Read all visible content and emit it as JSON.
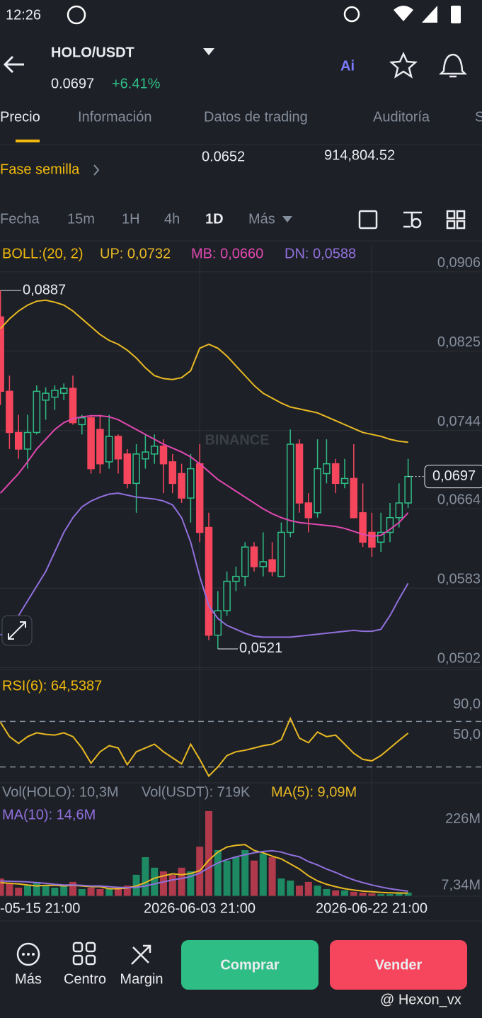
{
  "status_bar": {
    "time": "12:26"
  },
  "header": {
    "pair": "HOLO/USDT",
    "price": "0.0697",
    "change": "+6.41%",
    "ai": "Ai"
  },
  "tabs": [
    "Precio",
    "Información",
    "Datos de trading",
    "Auditoría",
    "S"
  ],
  "stats": {
    "phase": "Fase semilla",
    "low": "0.0652",
    "volume": "914,804.52"
  },
  "timeframes": [
    "Fecha",
    "15m",
    "1H",
    "4h",
    "1D",
    "Más"
  ],
  "main_chart": {
    "type": "candlestick",
    "watermark": "BINANCE",
    "legend": [
      "BOLL:(20, 2)",
      "UP: 0,0732",
      "MB: 0,0660",
      "DN: 0,0588"
    ],
    "ylim": [
      0.05,
      0.0934
    ],
    "yticks": [
      {
        "value": 0.0906,
        "label": "0,0906"
      },
      {
        "value": 0.0825,
        "label": "0,0825"
      },
      {
        "value": 0.0744,
        "label": "0,0744"
      },
      {
        "value": 0.0664,
        "label": "0,0664"
      },
      {
        "value": 0.0583,
        "label": "0,0583"
      },
      {
        "value": 0.0502,
        "label": "0,0502"
      }
    ],
    "up_color": "#2ebd85",
    "down_color": "#f6465d",
    "open": [
      0.086,
      0.0784,
      0.0742,
      0.0725,
      0.0742,
      0.0775,
      0.0778,
      0.0782,
      0.0787,
      0.075,
      0.0757,
      0.0745,
      0.0712,
      0.0738,
      0.072,
      0.069,
      0.0715,
      0.072,
      0.0728,
      0.0712,
      0.07,
      0.0675,
      0.071,
      0.0645,
      0.0535,
      0.056,
      0.059,
      0.0595,
      0.0625,
      0.0605,
      0.0612,
      0.0595,
      0.064,
      0.073,
      0.067,
      0.066,
      0.07,
      0.071,
      0.069,
      0.0695,
      0.066,
      0.064,
      0.063,
      0.064,
      0.0655,
      0.067
    ],
    "close": [
      0.0784,
      0.0742,
      0.0725,
      0.0742,
      0.0784,
      0.0782,
      0.0785,
      0.0787,
      0.0752,
      0.0757,
      0.0705,
      0.071,
      0.0738,
      0.0715,
      0.069,
      0.072,
      0.0722,
      0.0728,
      0.071,
      0.069,
      0.0675,
      0.0705,
      0.064,
      0.0535,
      0.056,
      0.059,
      0.0595,
      0.0625,
      0.0605,
      0.061,
      0.06,
      0.064,
      0.073,
      0.067,
      0.0655,
      0.0705,
      0.071,
      0.069,
      0.0695,
      0.0655,
      0.063,
      0.0625,
      0.064,
      0.0655,
      0.067,
      0.0697
    ],
    "high": [
      0.0887,
      0.08,
      0.076,
      0.076,
      0.079,
      0.0788,
      0.079,
      0.0792,
      0.08,
      0.076,
      0.076,
      0.076,
      0.076,
      0.074,
      0.0725,
      0.073,
      0.074,
      0.074,
      0.0735,
      0.072,
      0.071,
      0.072,
      0.073,
      0.066,
      0.058,
      0.06,
      0.0605,
      0.063,
      0.063,
      0.064,
      0.063,
      0.065,
      0.0745,
      0.0735,
      0.068,
      0.0735,
      0.0735,
      0.0715,
      0.0715,
      0.073,
      0.069,
      0.066,
      0.066,
      0.067,
      0.069,
      0.0715
    ],
    "low": [
      0.077,
      0.0725,
      0.0715,
      0.0705,
      0.074,
      0.0755,
      0.0765,
      0.0775,
      0.075,
      0.074,
      0.07,
      0.07,
      0.0705,
      0.07,
      0.0685,
      0.066,
      0.0705,
      0.071,
      0.068,
      0.068,
      0.067,
      0.065,
      0.063,
      0.053,
      0.0521,
      0.0555,
      0.058,
      0.0585,
      0.06,
      0.0595,
      0.0595,
      0.0595,
      0.0635,
      0.066,
      0.064,
      0.0655,
      0.069,
      0.068,
      0.0685,
      0.0655,
      0.0625,
      0.0615,
      0.062,
      0.063,
      0.0645,
      0.0665
    ],
    "series": [
      {
        "color": "#e8b923",
        "values": [
          0.0848,
          0.0858,
          0.0866,
          0.0872,
          0.0876,
          0.0877,
          0.0875,
          0.0872,
          0.0866,
          0.0858,
          0.085,
          0.0842,
          0.0836,
          0.0832,
          0.0826,
          0.0818,
          0.0808,
          0.08,
          0.0797,
          0.0796,
          0.0798,
          0.0805,
          0.0828,
          0.0832,
          0.0828,
          0.082,
          0.081,
          0.08,
          0.079,
          0.0782,
          0.0777,
          0.0772,
          0.0768,
          0.0766,
          0.0764,
          0.0762,
          0.0758,
          0.0754,
          0.075,
          0.0746,
          0.0742,
          0.074,
          0.0738,
          0.0735,
          0.0733,
          0.0732
        ]
      },
      {
        "color": "#e048b0",
        "values": [
          0.068,
          0.069,
          0.07,
          0.0712,
          0.0725,
          0.0735,
          0.0745,
          0.0752,
          0.0756,
          0.0758,
          0.0759,
          0.0759,
          0.0758,
          0.0755,
          0.075,
          0.0745,
          0.074,
          0.0735,
          0.073,
          0.0726,
          0.0722,
          0.0717,
          0.071,
          0.0702,
          0.0694,
          0.0688,
          0.0682,
          0.0676,
          0.067,
          0.0664,
          0.0659,
          0.0655,
          0.0652,
          0.065,
          0.0649,
          0.0648,
          0.0647,
          0.0646,
          0.0644,
          0.0641,
          0.0638,
          0.0636,
          0.0637,
          0.0643,
          0.065,
          0.066
        ]
      },
      {
        "color": "#9070dd",
        "values": [
          0.0535,
          0.0542,
          0.0555,
          0.057,
          0.0585,
          0.06,
          0.062,
          0.064,
          0.0655,
          0.0666,
          0.0672,
          0.0676,
          0.0679,
          0.068,
          0.0678,
          0.0676,
          0.0675,
          0.0674,
          0.0672,
          0.0668,
          0.0655,
          0.063,
          0.0595,
          0.0565,
          0.0552,
          0.0545,
          0.0541,
          0.0537,
          0.0534,
          0.0533,
          0.0533,
          0.0533,
          0.0533,
          0.0534,
          0.0535,
          0.0536,
          0.0537,
          0.0538,
          0.0539,
          0.054,
          0.0539,
          0.0539,
          0.0541,
          0.0555,
          0.0572,
          0.0588
        ]
      }
    ],
    "high_label": {
      "value": 0.0887,
      "label": "0,0887"
    },
    "low_label": {
      "value": 0.0521,
      "label": "0,0521"
    },
    "last_price": {
      "value": 0.0697,
      "label": "0,0697"
    }
  },
  "rsi_chart": {
    "type": "line",
    "legend": "RSI(6): 64,5387",
    "ylim": [
      0,
      100
    ],
    "yticks": [
      {
        "value": 90,
        "label": "90,0"
      },
      {
        "value": 50,
        "label": "50,0"
      }
    ],
    "levels": [
      80,
      20
    ],
    "color": "#e8b923",
    "values": [
      79,
      60,
      51,
      60,
      65,
      63,
      62,
      65,
      60,
      45,
      25,
      40,
      48,
      45,
      23,
      40,
      45,
      50,
      40,
      32,
      24,
      50,
      30,
      8,
      20,
      35,
      40,
      42,
      45,
      48,
      50,
      56,
      84,
      58,
      52,
      66,
      60,
      62,
      50,
      38,
      30,
      28,
      35,
      45,
      55,
      64.5387
    ]
  },
  "volume_chart": {
    "type": "bar",
    "legend": [
      "Vol(HOLO): 10,3M",
      "Vol(USDT): 719K",
      "MA(5): 9,09M",
      "MA(10): 14,6M"
    ],
    "ylim": [
      0,
      255
    ],
    "yticks": [
      {
        "value": 226,
        "label": "226M"
      },
      {
        "value": 7.34,
        "label": "7,34M"
      }
    ],
    "values": [
      52,
      38,
      25,
      31,
      42,
      31,
      25,
      29,
      42,
      21,
      25,
      21,
      21,
      25,
      31,
      63,
      115,
      84,
      73,
      63,
      84,
      73,
      146,
      251,
      136,
      105,
      115,
      136,
      105,
      126,
      115,
      52,
      46,
      31,
      42,
      31,
      21,
      17,
      17,
      13,
      10,
      8,
      6,
      6,
      8,
      10.3
    ],
    "series": [
      {
        "color": "#e8b923",
        "values": [
          40,
          38,
          36,
          33,
          30,
          32,
          32,
          30,
          32,
          30,
          28,
          28,
          22,
          22,
          24,
          30,
          40,
          53,
          60,
          66,
          63,
          67,
          75,
          106,
          130,
          145,
          150,
          152,
          135,
          128,
          118,
          110,
          95,
          80,
          60,
          45,
          35,
          28,
          22,
          18,
          15,
          13,
          11,
          10,
          9.5,
          9.09
        ]
      },
      {
        "color": "#9070dd",
        "values": [
          45,
          44,
          43,
          42,
          40,
          38,
          35,
          33,
          33,
          32,
          30,
          30,
          28,
          26,
          25,
          26,
          30,
          36,
          42,
          48,
          52,
          58,
          68,
          84,
          98,
          108,
          116,
          122,
          128,
          132,
          134,
          130,
          122,
          116,
          102,
          92,
          80,
          70,
          58,
          48,
          40,
          33,
          27,
          22,
          18,
          14.6
        ]
      }
    ]
  },
  "x_labels": [
    "-05-15 21:00",
    "2026-06-03 21:00",
    "2026-06-22 21:00"
  ],
  "bottom_nav": {
    "items": [
      "Más",
      "Centro",
      "Margin"
    ],
    "buy": "Comprar",
    "sell": "Vender"
  },
  "watermark": "@ Hexon_vx"
}
